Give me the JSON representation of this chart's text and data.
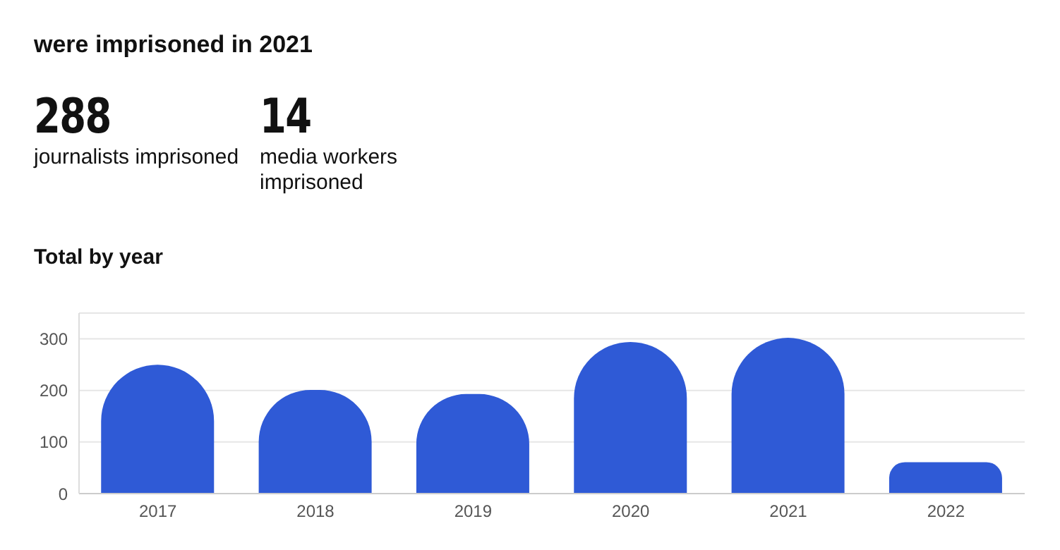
{
  "chart_data": {
    "type": "bar",
    "title": "were imprisoned in 2021",
    "subtitle": "Total by year",
    "annotations": [
      "288",
      "journalists imprisoned",
      "14",
      "media workers imprisoned"
    ],
    "categories": [
      "2017",
      "2018",
      "2019",
      "2020",
      "2021",
      "2022"
    ],
    "values": [
      250,
      201,
      193,
      294,
      302,
      61
    ],
    "color": "#2f5ad6",
    "ylim": [
      0,
      350
    ],
    "yticks": [
      0,
      100,
      200,
      300
    ],
    "grid": "y"
  }
}
